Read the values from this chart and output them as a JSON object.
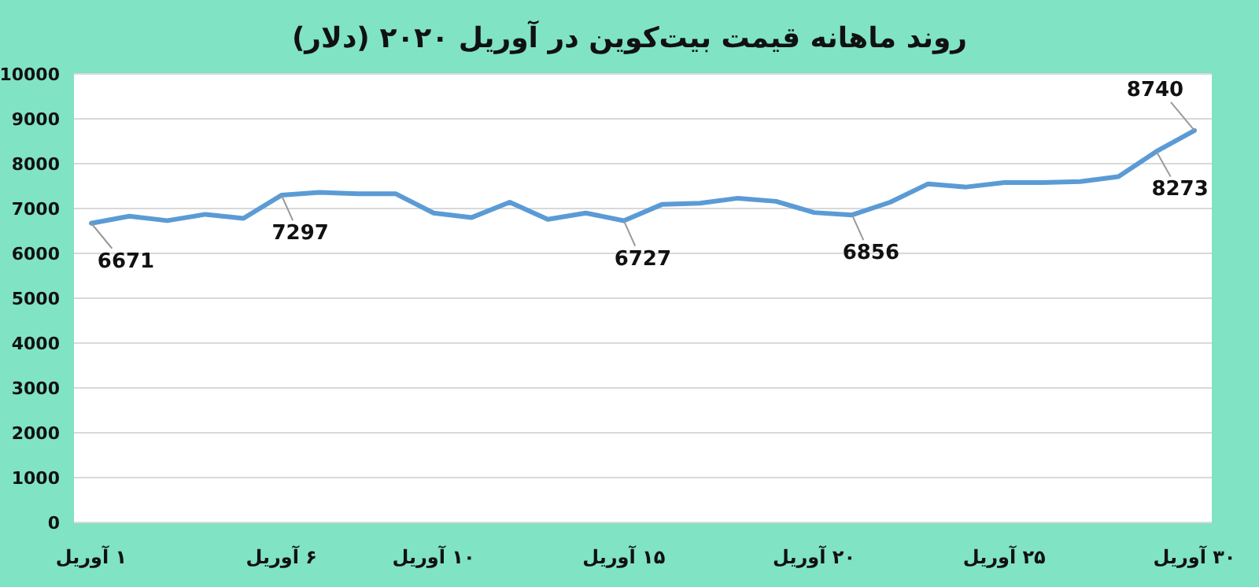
{
  "chart_data": {
    "type": "line",
    "title": "روند ماهانه قیمت بیت‌کوین در آوریل ۲۰۲۰ (دلار)",
    "categories": [
      "۱ آوریل",
      null,
      null,
      null,
      null,
      "۶ آوریل",
      null,
      null,
      null,
      "۱۰ آوریل",
      null,
      null,
      null,
      null,
      "۱۵ آوریل",
      null,
      null,
      null,
      null,
      "۲۰ آوریل",
      null,
      null,
      null,
      null,
      "۲۵ آوریل",
      null,
      null,
      null,
      null,
      "۳۰ آوریل"
    ],
    "values": [
      6671,
      6830,
      6730,
      6870,
      6780,
      7297,
      7360,
      7330,
      7330,
      6900,
      6800,
      7140,
      6760,
      6900,
      6727,
      7090,
      7120,
      7230,
      7160,
      6910,
      6856,
      7140,
      7550,
      7480,
      7580,
      7580,
      7600,
      7710,
      8273,
      8740
    ],
    "value_labels": [
      "6671",
      null,
      null,
      null,
      null,
      "7297",
      null,
      null,
      null,
      null,
      null,
      null,
      null,
      null,
      "6727",
      null,
      null,
      null,
      null,
      null,
      "6856",
      null,
      null,
      null,
      null,
      null,
      null,
      null,
      "8273",
      "8740"
    ],
    "color": "#5b9bd5",
    "ylim": [
      0,
      10000
    ],
    "yticks": [
      0,
      1000,
      2000,
      3000,
      4000,
      5000,
      6000,
      7000,
      8000,
      9000,
      10000
    ],
    "grid": "y"
  }
}
